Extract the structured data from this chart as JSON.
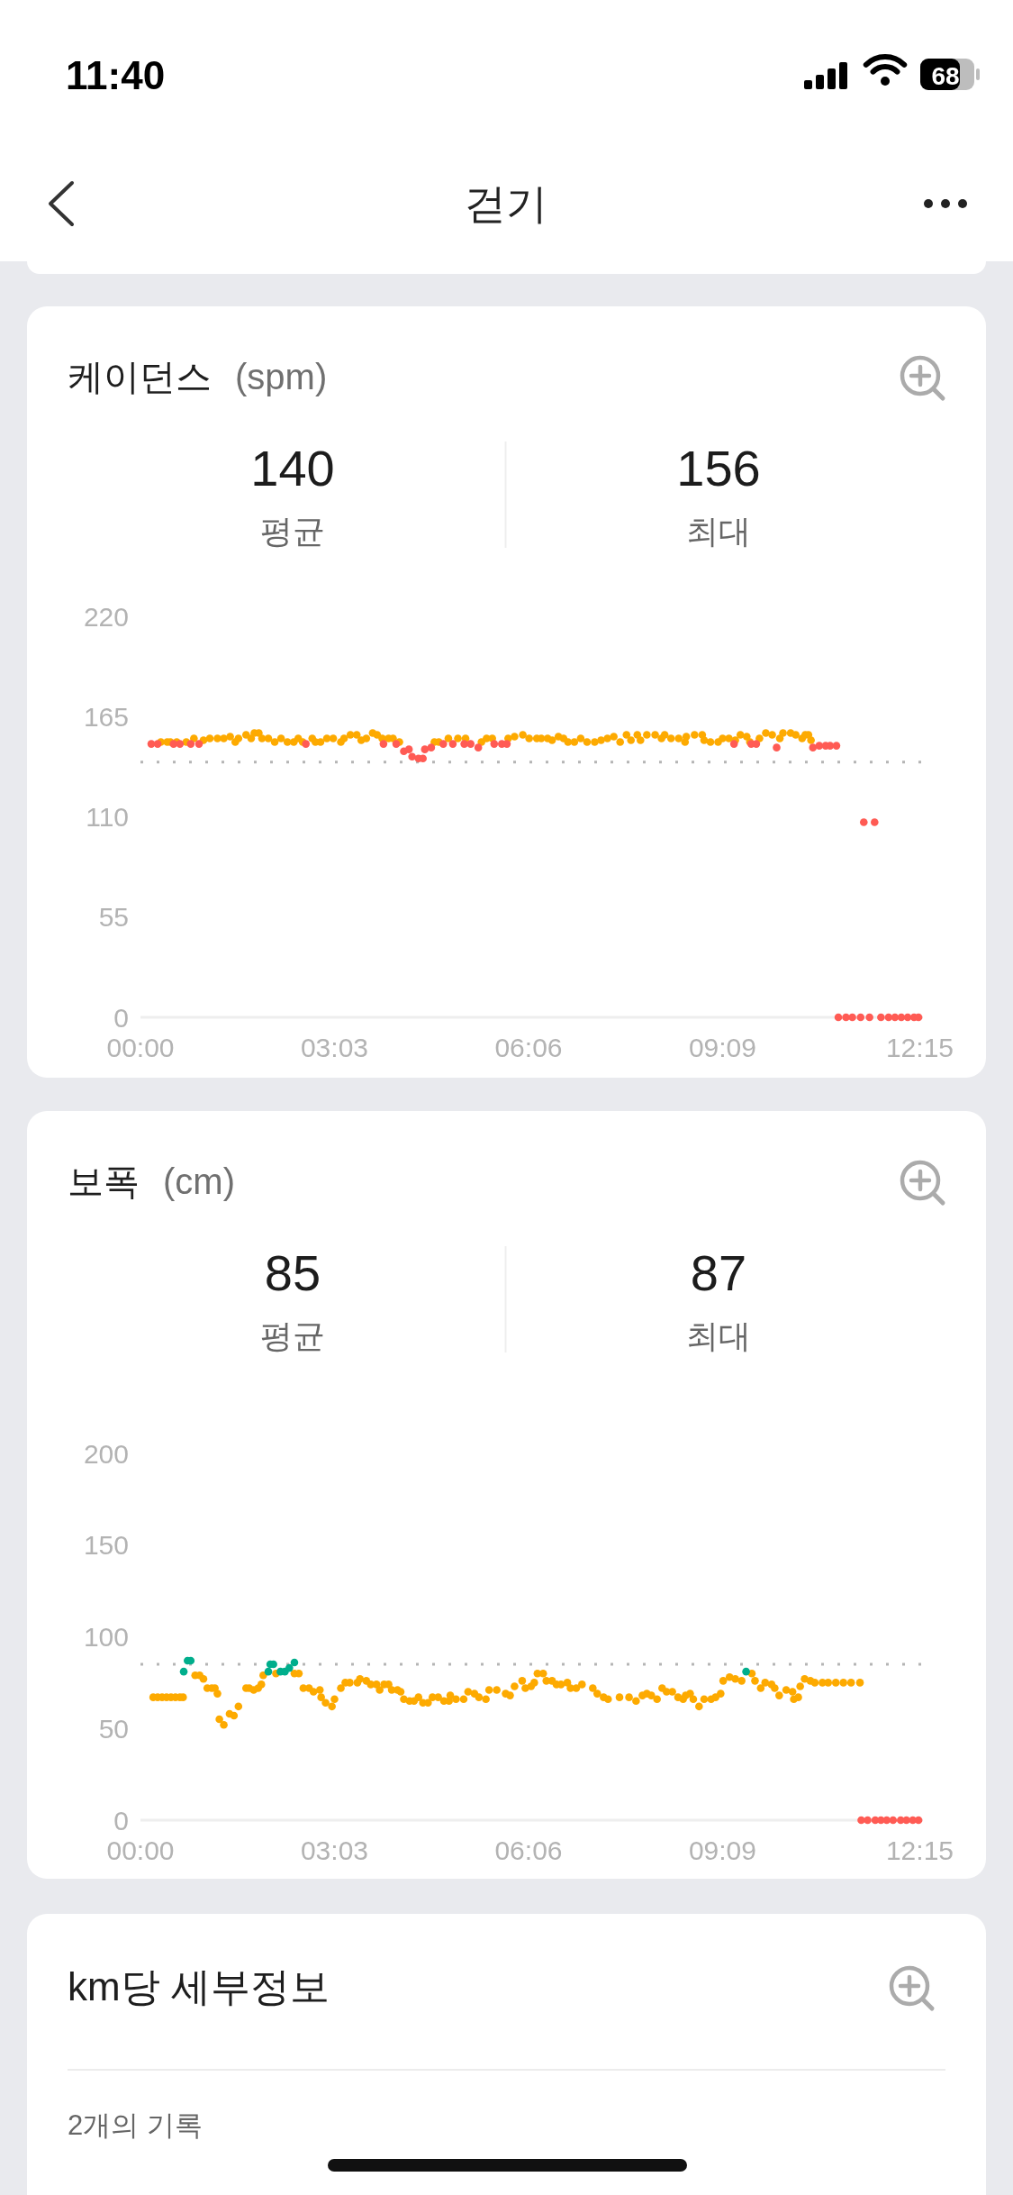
{
  "chart_data": [
    {
      "type": "other",
      "title": "걷기",
      "annotations": [
        "11:40",
        "68"
      ]
    },
    {
      "type": "scatter",
      "title": "케이던스",
      "subtitle": "(spm)",
      "annotations": [
        "140",
        "평균",
        "156",
        "최대"
      ],
      "marker": "circle",
      "xlim": [
        0,
        12.3
      ],
      "xticks": [
        {
          "value": 0,
          "label": "00:00"
        },
        {
          "value": 3.05,
          "label": "03:03"
        },
        {
          "value": 6.1,
          "label": "06:06"
        },
        {
          "value": 9.15,
          "label": "09:09"
        },
        {
          "value": 12.25,
          "label": "12:15"
        }
      ],
      "ylim": [
        0,
        220
      ],
      "yticks": [
        0,
        55,
        110,
        165,
        220
      ],
      "ref_lines": [
        {
          "axis": "y",
          "value": 140,
          "color": "#b5b5b5",
          "line_style": "dotted"
        }
      ],
      "series": [
        {
          "color": "#fdaa00",
          "x": [
            0.32,
            0.42,
            0.47,
            0.57,
            0.72,
            0.84,
            0.99,
            1.09,
            1.21,
            1.31,
            1.41,
            1.49,
            1.54,
            1.66,
            1.74,
            1.79,
            1.86,
            1.91,
            2.01,
            2.11,
            2.21,
            2.31,
            2.41,
            2.48,
            2.55,
            2.7,
            2.75,
            2.83,
            2.93,
            3.03,
            3.15,
            3.2,
            3.3,
            3.4,
            3.47,
            3.55,
            3.65,
            3.72,
            3.8,
            3.9,
            3.97,
            4.07,
            4.62,
            4.69,
            4.84,
            4.99,
            5.11,
            5.36,
            5.44,
            5.53,
            5.78,
            5.88,
            6.01,
            6.11,
            6.23,
            6.3,
            6.4,
            6.47,
            6.57,
            6.65,
            6.72,
            6.82,
            6.92,
            7.02,
            7.14,
            7.24,
            7.34,
            7.44,
            7.54,
            7.64,
            7.71,
            7.81,
            7.86,
            7.96,
            8.09,
            8.19,
            8.24,
            8.34,
            8.46,
            8.56,
            8.58,
            8.71,
            8.83,
            8.86,
            8.96,
            9.08,
            9.15,
            9.25,
            9.35,
            9.43,
            9.53,
            9.58,
            9.73,
            9.83,
            9.93,
            10.05,
            10.1,
            10.22,
            10.3,
            10.4,
            10.45,
            10.5,
            10.54
          ],
          "values": [
            151,
            151,
            151,
            151,
            151,
            153,
            152,
            153,
            153,
            153,
            154,
            151,
            153,
            155,
            153,
            156,
            156,
            153,
            153,
            151,
            153,
            151,
            151,
            153,
            151,
            153,
            151,
            151,
            153,
            153,
            151,
            153,
            155,
            155,
            152,
            153,
            156,
            155,
            153,
            153,
            153,
            151,
            151,
            151,
            153,
            153,
            153,
            151,
            153,
            153,
            153,
            154,
            155,
            153,
            153,
            153,
            153,
            152,
            154,
            153,
            151,
            151,
            153,
            151,
            151,
            152,
            153,
            154,
            151,
            155,
            152,
            155,
            152,
            155,
            155,
            153,
            155,
            153,
            153,
            151,
            154,
            155,
            155,
            152,
            151,
            151,
            153,
            153,
            152,
            155,
            154,
            151,
            153,
            156,
            155,
            153,
            156,
            156,
            155,
            153,
            155,
            155,
            152
          ]
        },
        {
          "color": "#ff5b54",
          "x": [
            0.17,
            0.27,
            0.52,
            0.62,
            0.79,
            0.92,
            2.6,
            3.82,
            4.02,
            4.14,
            4.22,
            4.27,
            4.37,
            4.44,
            4.47,
            4.57,
            4.76,
            4.91,
            5.09,
            5.19,
            5.31,
            5.56,
            5.68,
            5.76,
            9.33,
            9.6,
            9.68,
            10.0,
            10.57,
            10.67,
            10.77,
            10.84,
            10.94,
            10.97,
            11.09,
            11.19,
            11.32,
            11.37,
            11.46,
            11.54,
            11.64,
            11.76,
            11.86,
            11.96,
            12.06,
            12.16,
            12.23
          ],
          "values": [
            150,
            150,
            150,
            150,
            150,
            150,
            150,
            150,
            150,
            146,
            147,
            143,
            142,
            142,
            147,
            148,
            150,
            150,
            150,
            150,
            148,
            150,
            150,
            150,
            150,
            150,
            150,
            148,
            148,
            149,
            149,
            149,
            149,
            0,
            0,
            0,
            0,
            107,
            0,
            107,
            0,
            0,
            0,
            0,
            0,
            0,
            0
          ]
        }
      ]
    },
    {
      "type": "scatter",
      "title": "보폭",
      "subtitle": "(cm)",
      "annotations": [
        "85",
        "평균",
        "87",
        "최대"
      ],
      "marker": "circle",
      "xlim": [
        0,
        12.3
      ],
      "xticks": [
        {
          "value": 0,
          "label": "00:00"
        },
        {
          "value": 3.05,
          "label": "03:03"
        },
        {
          "value": 6.1,
          "label": "06:06"
        },
        {
          "value": 9.15,
          "label": "09:09"
        },
        {
          "value": 12.25,
          "label": "12:15"
        }
      ],
      "ylim": [
        0,
        200
      ],
      "yticks": [
        0,
        50,
        100,
        150,
        200
      ],
      "ref_lines": [
        {
          "axis": "y",
          "value": 85,
          "color": "#b5b5b5",
          "line_style": "dotted"
        }
      ],
      "series": [
        {
          "color": "#fdaa00",
          "x": [
            0.2,
            0.27,
            0.34,
            0.41,
            0.48,
            0.55,
            0.62,
            0.67,
            0.86,
            0.93,
            0.99,
            1.05,
            1.12,
            1.17,
            1.21,
            1.24,
            1.31,
            1.4,
            1.47,
            1.54,
            1.66,
            1.71,
            1.78,
            1.85,
            1.9,
            1.93,
            2.13,
            2.42,
            2.49,
            2.56,
            2.65,
            2.72,
            2.82,
            2.84,
            2.91,
            3.01,
            3.05,
            3.15,
            3.22,
            3.29,
            3.41,
            3.45,
            3.55,
            3.62,
            3.71,
            3.76,
            3.83,
            3.9,
            3.95,
            4.04,
            4.09,
            4.14,
            4.23,
            4.3,
            4.37,
            4.44,
            4.52,
            4.59,
            4.68,
            4.77,
            4.85,
            4.87,
            4.96,
            5.08,
            5.15,
            5.25,
            5.32,
            5.43,
            5.48,
            5.6,
            5.74,
            5.81,
            5.88,
            6.0,
            6.05,
            6.14,
            6.19,
            6.24,
            6.33,
            6.38,
            6.47,
            6.54,
            6.61,
            6.71,
            6.76,
            6.85,
            6.94,
            7.11,
            7.18,
            7.28,
            7.35,
            7.53,
            7.68,
            7.79,
            7.89,
            7.96,
            8.03,
            8.12,
            8.2,
            8.27,
            8.36,
            8.45,
            8.53,
            8.57,
            8.64,
            8.69,
            8.78,
            8.86,
            8.97,
            9.04,
            9.12,
            9.16,
            9.26,
            9.35,
            9.45,
            9.61,
            9.66,
            9.75,
            9.82,
            9.92,
            9.97,
            10.04,
            10.15,
            10.25,
            10.27,
            10.34,
            10.37,
            10.44,
            10.53,
            10.6,
            10.72,
            10.81,
            10.93,
            11.05,
            11.17,
            11.31
          ],
          "values": [
            67,
            67,
            67,
            67,
            67,
            67,
            67,
            67,
            79,
            79,
            77,
            72,
            72,
            72,
            69,
            55,
            52,
            58,
            57,
            62,
            72,
            72,
            71,
            72,
            74,
            79,
            80,
            80,
            80,
            72,
            72,
            70,
            71,
            67,
            64,
            62,
            66,
            72,
            75,
            75,
            75,
            77,
            76,
            74,
            74,
            71,
            74,
            74,
            71,
            71,
            70,
            66,
            65,
            65,
            67,
            64,
            64,
            67,
            67,
            65,
            65,
            68,
            66,
            66,
            70,
            69,
            67,
            66,
            71,
            71,
            69,
            68,
            73,
            76,
            72,
            73,
            75,
            80,
            80,
            76,
            76,
            74,
            74,
            75,
            72,
            72,
            74,
            72,
            69,
            67,
            66,
            67,
            67,
            65,
            68,
            69,
            68,
            66,
            72,
            70,
            70,
            67,
            66,
            68,
            69,
            66,
            62,
            66,
            66,
            67,
            69,
            76,
            78,
            77,
            76,
            80,
            76,
            72,
            75,
            74,
            72,
            68,
            71,
            70,
            66,
            67,
            73,
            77,
            76,
            75,
            75,
            75,
            75,
            75,
            75,
            75
          ]
        },
        {
          "color": "#00ae8c",
          "x": [
            0.68,
            0.74,
            0.79,
            2.01,
            2.04,
            2.09,
            2.2,
            2.27,
            2.34,
            2.42,
            9.52
          ],
          "values": [
            81,
            87,
            87,
            81,
            85,
            85,
            81,
            81,
            83,
            86,
            81
          ]
        },
        {
          "color": "#ff5b54",
          "x": [
            11.33,
            11.43,
            11.55,
            11.64,
            11.73,
            11.83,
            11.95,
            12.04,
            12.14,
            12.23
          ],
          "values": [
            0,
            0,
            0,
            0,
            0,
            0,
            0,
            0,
            0,
            0
          ]
        }
      ]
    },
    {
      "type": "other",
      "title": "km당 세부정보",
      "annotations": [
        "2개의 기록"
      ]
    }
  ]
}
